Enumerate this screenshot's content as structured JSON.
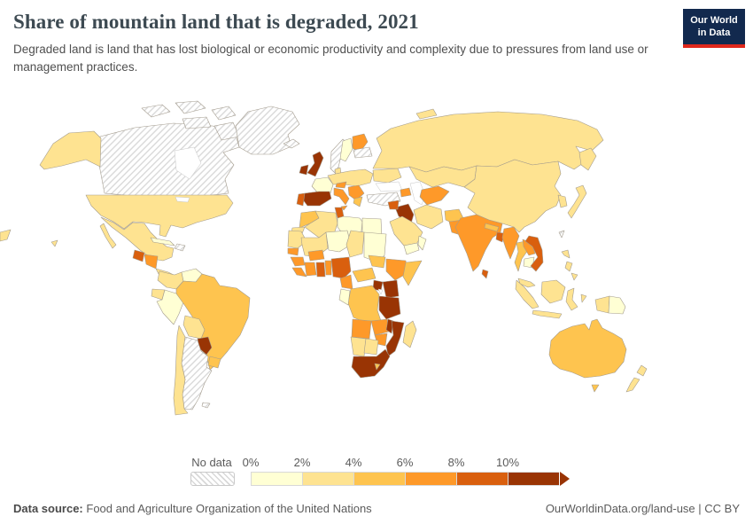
{
  "header": {
    "title": "Share of mountain land that is degraded, 2021",
    "subtitle": "Degraded land is land that has lost biological or economic productivity and complexity due to pressures from land use or management practices."
  },
  "logo": {
    "line1": "Our World",
    "line2": "in Data",
    "bg_color": "#12294e",
    "accent_color": "#e0271b"
  },
  "legend": {
    "no_data_label": "No data",
    "ticks": [
      "0%",
      "2%",
      "4%",
      "6%",
      "8%",
      "10%"
    ]
  },
  "footer": {
    "source_label": "Data source:",
    "source_text": "Food and Agriculture Organization of the United Nations",
    "url": "OurWorldinData.org/land-use",
    "separator": " | ",
    "license": "CC BY"
  },
  "chart_data": {
    "type": "heatmap",
    "map_type": "world-choropleth",
    "title": "Share of mountain land that is degraded",
    "year": 2021,
    "unit": "% of mountain land degraded",
    "bin_thresholds": [
      0,
      2,
      4,
      6,
      8,
      10
    ],
    "upper_open_ended": true,
    "bins": [
      "0-2%",
      "2-4%",
      "4-6%",
      "6-8%",
      "8-10%",
      "10%+"
    ],
    "bin_colors": [
      "#ffffd4",
      "#fee391",
      "#fec44f",
      "#fe9929",
      "#d95f0e",
      "#993404"
    ],
    "no_data_style": "gray-diagonal-hatch",
    "legend_position": "bottom",
    "regions": {
      "canada": "no-data",
      "greenland": "no-data",
      "iceland": "no-data",
      "norway": "no-data",
      "baltic-states": "no-data",
      "turkey": "no-data",
      "argentina": "no-data",
      "hispaniola": "no-data",
      "taiwan": "no-data",
      "falkland-islands": "no-data",
      "united-states": "2-4%",
      "mexico": "2-4%",
      "guatemala": "8-10%",
      "honduras-nicaragua": "6-8%",
      "panama-costa-rica": "2-4%",
      "cuba": "0-2%",
      "colombia": "2-4%",
      "venezuela": "0-2%",
      "guyanas": "0-2%",
      "ecuador": "2-4%",
      "peru": "0-2%",
      "brazil": "4-6%",
      "bolivia": "2-4%",
      "paraguay": "10%+",
      "uruguay": "4-6%",
      "chile": "2-4%",
      "united-kingdom": "10%+",
      "ireland": "10%+",
      "sweden": "0-2%",
      "finland": "6-8%",
      "denmark": "2-4%",
      "central-europe": "2-4%",
      "france": "0-2%",
      "spain": "10%+",
      "portugal": "8-10%",
      "italy": "6-8%",
      "alps-austria": "6-8%",
      "balkans": "6-8%",
      "greece": "4-6%",
      "ukraine": "2-4%",
      "russia": "2-4%",
      "kazakhstan": "2-4%",
      "mongolia": "0-2%",
      "uzbekistan-turkmenistan": "6-8%",
      "caucasus": "6-8%",
      "iran": "2-4%",
      "iraq": "10%+",
      "syria": "8-10%",
      "saudi-arabia": "2-4%",
      "yemen": "0-2%",
      "oman": "0-2%",
      "afghanistan": "4-6%",
      "pakistan": "6-8%",
      "india": "6-8%",
      "nepal": "4-6%",
      "bangladesh": "8-10%",
      "sri-lanka": "8-10%",
      "myanmar": "6-8%",
      "thailand": "4-6%",
      "laos": "6-8%",
      "cambodia": "0-2%",
      "vietnam": "8-10%",
      "china": "2-4%",
      "south-korea": "2-4%",
      "japan": "2-4%",
      "philippines": "2-4%",
      "malaysia": "2-4%",
      "indonesia": "2-4%",
      "new-guinea-west": "2-4%",
      "papua-new-guinea": "0-2%",
      "australia": "4-6%",
      "new-zealand": "2-4%",
      "morocco": "4-6%",
      "western-sahara": "2-4%",
      "algeria": "2-4%",
      "tunisia": "8-10%",
      "libya": "0-2%",
      "egypt": "0-2%",
      "mauritania": "2-4%",
      "mali": "2-4%",
      "niger": "0-2%",
      "chad": "2-4%",
      "sudan": "0-2%",
      "senegal": "6-8%",
      "guinea": "6-8%",
      "sierra-leone-liberia": "6-8%",
      "cote-divoire": "6-8%",
      "ghana": "8-10%",
      "togo-benin": "6-8%",
      "burkina-faso": "6-8%",
      "nigeria": "8-10%",
      "cameroon": "6-8%",
      "central-african-republic": "4-6%",
      "south-sudan": "4-6%",
      "ethiopia": "6-8%",
      "somalia": "4-6%",
      "kenya": "10%+",
      "uganda": "10%+",
      "drc": "4-6%",
      "gabon-congo": "0-2%",
      "tanzania": "10%+",
      "angola": "6-8%",
      "zambia": "6-8%",
      "malawi": "10%+",
      "mozambique": "10%+",
      "zimbabwe": "6-8%",
      "namibia": "2-4%",
      "botswana": "2-4%",
      "south-africa": "10%+",
      "lesotho": "4-6%",
      "madagascar": "2-4%"
    }
  }
}
